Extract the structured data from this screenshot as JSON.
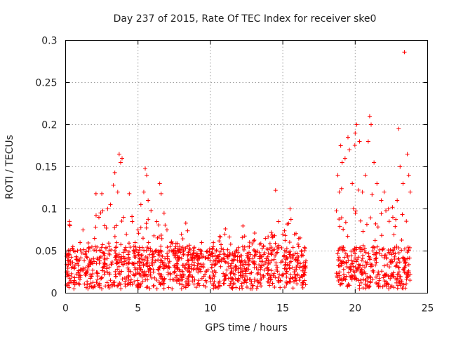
{
  "chart_data": {
    "type": "scatter",
    "title": "Day 237 of 2015, Rate Of TEC Index for receiver ske0",
    "xlabel": "GPS time / hours",
    "ylabel": "ROTI / TECUs",
    "xlim": [
      0,
      25
    ],
    "ylim": [
      0,
      0.3
    ],
    "x_ticks": [
      0,
      5,
      10,
      15,
      20,
      25
    ],
    "x_tick_labels": [
      "0",
      "5",
      "10",
      "15",
      "20",
      "25"
    ],
    "y_ticks": [
      0,
      0.05,
      0.1,
      0.15,
      0.2,
      0.25,
      0.3
    ],
    "y_tick_labels": [
      "0",
      "0.05",
      "0.1",
      "0.15",
      "0.2",
      "0.25",
      "0.3"
    ],
    "grid": true,
    "marker": "+",
    "marker_color": "#ff0000",
    "series": [
      {
        "name": "ROTI",
        "description": "dense scatter, data gap between ~16.6 h and ~18.7 h",
        "points": [
          [
            0.1,
            0.02
          ],
          [
            0.2,
            0.045
          ],
          [
            0.3,
            0.08
          ],
          [
            0.4,
            0.03
          ],
          [
            0.5,
            0.055
          ],
          [
            0.6,
            0.015
          ],
          [
            0.8,
            0.035
          ],
          [
            1.0,
            0.06
          ],
          [
            1.2,
            0.075
          ],
          [
            1.4,
            0.03
          ],
          [
            1.6,
            0.05
          ],
          [
            1.8,
            0.02
          ],
          [
            2.0,
            0.065
          ],
          [
            2.1,
            0.118
          ],
          [
            2.3,
            0.09
          ],
          [
            2.5,
            0.118
          ],
          [
            2.7,
            0.08
          ],
          [
            2.9,
            0.1
          ],
          [
            3.1,
            0.105
          ],
          [
            3.3,
            0.128
          ],
          [
            3.4,
            0.143
          ],
          [
            3.5,
            0.08
          ],
          [
            3.6,
            0.12
          ],
          [
            3.7,
            0.165
          ],
          [
            3.8,
            0.155
          ],
          [
            3.9,
            0.16
          ],
          [
            4.0,
            0.09
          ],
          [
            4.2,
            0.07
          ],
          [
            4.4,
            0.118
          ],
          [
            4.6,
            0.085
          ],
          [
            4.8,
            0.06
          ],
          [
            5.0,
            0.075
          ],
          [
            5.2,
            0.105
          ],
          [
            5.4,
            0.12
          ],
          [
            5.5,
            0.148
          ],
          [
            5.6,
            0.14
          ],
          [
            5.7,
            0.11
          ],
          [
            5.9,
            0.098
          ],
          [
            6.1,
            0.068
          ],
          [
            6.3,
            0.085
          ],
          [
            6.5,
            0.13
          ],
          [
            6.6,
            0.118
          ],
          [
            6.8,
            0.095
          ],
          [
            7.0,
            0.075
          ],
          [
            7.3,
            0.06
          ],
          [
            7.6,
            0.055
          ],
          [
            8.0,
            0.07
          ],
          [
            8.3,
            0.083
          ],
          [
            8.6,
            0.052
          ],
          [
            9.0,
            0.045
          ],
          [
            9.4,
            0.06
          ],
          [
            9.8,
            0.05
          ],
          [
            10.2,
            0.055
          ],
          [
            10.6,
            0.062
          ],
          [
            11.0,
            0.07
          ],
          [
            11.4,
            0.058
          ],
          [
            11.8,
            0.05
          ],
          [
            12.2,
            0.066
          ],
          [
            12.6,
            0.055
          ],
          [
            13.0,
            0.062
          ],
          [
            13.4,
            0.058
          ],
          [
            13.8,
            0.065
          ],
          [
            14.2,
            0.072
          ],
          [
            14.5,
            0.122
          ],
          [
            14.7,
            0.085
          ],
          [
            15.0,
            0.07
          ],
          [
            15.3,
            0.082
          ],
          [
            15.5,
            0.1
          ],
          [
            15.8,
            0.07
          ],
          [
            16.1,
            0.055
          ],
          [
            16.4,
            0.045
          ],
          [
            18.8,
            0.14
          ],
          [
            18.9,
            0.12
          ],
          [
            19.0,
            0.175
          ],
          [
            19.1,
            0.155
          ],
          [
            19.3,
            0.16
          ],
          [
            19.5,
            0.185
          ],
          [
            19.6,
            0.17
          ],
          [
            19.8,
            0.13
          ],
          [
            20.0,
            0.19
          ],
          [
            20.1,
            0.2
          ],
          [
            20.3,
            0.18
          ],
          [
            20.5,
            0.12
          ],
          [
            20.7,
            0.14
          ],
          [
            20.9,
            0.18
          ],
          [
            21.0,
            0.21
          ],
          [
            21.1,
            0.2
          ],
          [
            21.3,
            0.155
          ],
          [
            21.5,
            0.13
          ],
          [
            21.8,
            0.11
          ],
          [
            22.0,
            0.12
          ],
          [
            22.3,
            0.1
          ],
          [
            22.6,
            0.09
          ],
          [
            22.9,
            0.11
          ],
          [
            23.0,
            0.195
          ],
          [
            23.1,
            0.15
          ],
          [
            23.3,
            0.13
          ],
          [
            23.4,
            0.286
          ],
          [
            23.6,
            0.165
          ],
          [
            23.7,
            0.14
          ],
          [
            23.8,
            0.12
          ]
        ]
      }
    ]
  }
}
